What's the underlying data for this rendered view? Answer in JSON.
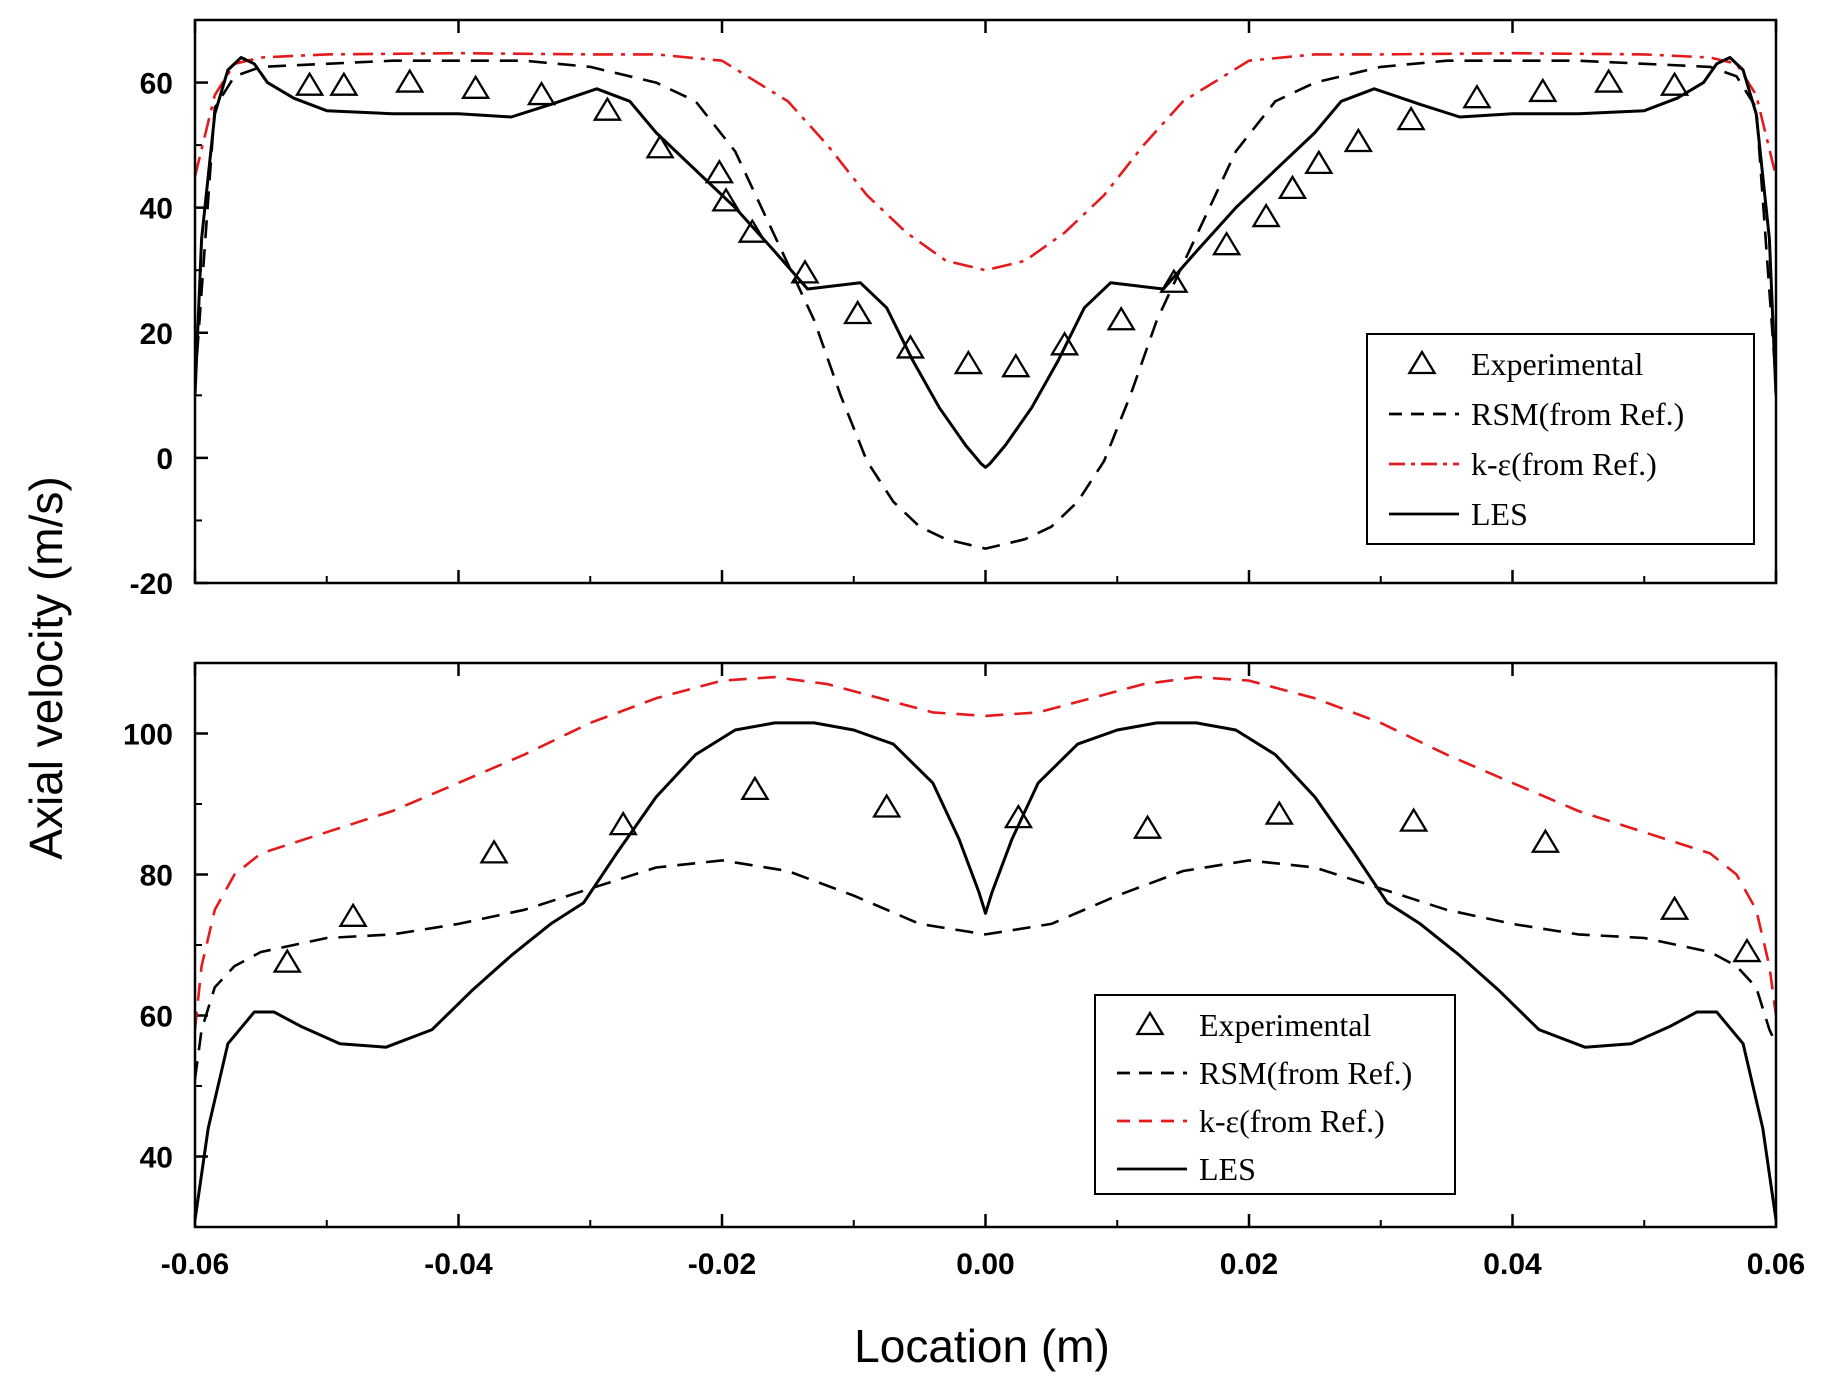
{
  "chart_data": [
    {
      "type": "line",
      "panel": "top",
      "xlabel": "Location (m)",
      "ylabel": "Axial velocity (m/s)",
      "xlim": [
        -0.06,
        0.06
      ],
      "ylim": [
        -20,
        70
      ],
      "xticks": [
        -0.06,
        -0.04,
        -0.02,
        0.0,
        0.02,
        0.04,
        0.06
      ],
      "xtick_labels": [
        "-0.06",
        "-0.04",
        "-0.02",
        "0.00",
        "0.02",
        "0.04",
        "0.06"
      ],
      "yticks": [
        -20,
        0,
        20,
        40,
        60
      ],
      "ytick_labels": [
        "-20",
        "0",
        "20",
        "40",
        "60"
      ],
      "legend_position": "lower-right",
      "series": [
        {
          "name": "Experimental",
          "style": "triangle",
          "color": "#000000",
          "x": [
            -0.0513,
            -0.0487,
            -0.0437,
            -0.0387,
            -0.0337,
            -0.0287,
            -0.0247,
            -0.0202,
            -0.0197,
            -0.0177,
            -0.0137,
            -0.0097,
            -0.0057,
            -0.0013,
            0.0023,
            0.006,
            0.0103,
            0.0143,
            0.0183,
            0.0213,
            0.0233,
            0.0253,
            0.0283,
            0.0323,
            0.0373,
            0.0423,
            0.0473,
            0.0523
          ],
          "y": [
            59.5,
            59.5,
            60,
            59,
            58,
            55.5,
            49.5,
            45.5,
            41,
            36,
            29.5,
            23,
            17.5,
            15,
            14.5,
            18,
            22,
            28,
            34,
            38.5,
            43,
            47,
            50.5,
            54,
            57.5,
            58.5,
            60,
            59.5
          ]
        },
        {
          "name": "RSM(from Ref.)",
          "style": "dashed",
          "color": "#000000",
          "x": [
            -0.06,
            -0.0585,
            -0.057,
            -0.055,
            -0.05,
            -0.045,
            -0.04,
            -0.035,
            -0.03,
            -0.025,
            -0.022,
            -0.019,
            -0.017,
            -0.015,
            -0.013,
            -0.011,
            -0.009,
            -0.007,
            -0.005,
            -0.003,
            -0.001,
            0.0,
            0.001,
            0.003,
            0.005,
            0.007,
            0.009,
            0.011,
            0.013,
            0.015,
            0.017,
            0.019,
            0.022,
            0.025,
            0.03,
            0.035,
            0.04,
            0.045,
            0.05,
            0.055,
            0.057,
            0.0585,
            0.06
          ],
          "y": [
            12,
            56,
            61,
            62.5,
            63,
            63.5,
            63.5,
            63.5,
            62.5,
            60,
            57,
            49,
            40,
            31,
            22,
            10,
            -0.5,
            -7,
            -11,
            -13,
            -14,
            -14.5,
            -14,
            -13,
            -11,
            -7,
            -0.5,
            10,
            22,
            31,
            40,
            49,
            57,
            60,
            62.5,
            63.5,
            63.5,
            63.5,
            63,
            62.5,
            61,
            56,
            12
          ]
        },
        {
          "name": "k-ε(from Ref.)",
          "style": "dash-dot",
          "color": "#e41a1c",
          "x": [
            -0.06,
            -0.0585,
            -0.057,
            -0.055,
            -0.05,
            -0.04,
            -0.03,
            -0.025,
            -0.02,
            -0.015,
            -0.012,
            -0.009,
            -0.006,
            -0.003,
            0.0,
            0.003,
            0.006,
            0.009,
            0.012,
            0.015,
            0.02,
            0.025,
            0.03,
            0.04,
            0.05,
            0.055,
            0.057,
            0.0585,
            0.06
          ],
          "y": [
            45,
            58,
            63,
            64,
            64.5,
            64.7,
            64.5,
            64.5,
            63.5,
            57,
            50,
            42,
            36,
            31.5,
            30,
            31.5,
            36,
            42,
            50,
            57,
            63.5,
            64.5,
            64.5,
            64.7,
            64.5,
            64,
            63,
            58,
            45
          ]
        },
        {
          "name": "LES",
          "style": "solid",
          "color": "#000000",
          "x": [
            -0.06,
            -0.0595,
            -0.0585,
            -0.0575,
            -0.0565,
            -0.0555,
            -0.0545,
            -0.0525,
            -0.05,
            -0.045,
            -0.04,
            -0.036,
            -0.033,
            -0.0295,
            -0.027,
            -0.025,
            -0.022,
            -0.019,
            -0.016,
            -0.0135,
            -0.0115,
            -0.0095,
            -0.0075,
            -0.0055,
            -0.0035,
            -0.0015,
            -0.0003,
            0.0,
            0.0003,
            0.0015,
            0.0035,
            0.0055,
            0.0075,
            0.0095,
            0.0115,
            0.0135,
            0.016,
            0.019,
            0.022,
            0.025,
            0.027,
            0.0295,
            0.033,
            0.036,
            0.04,
            0.045,
            0.05,
            0.0525,
            0.0545,
            0.0555,
            0.0565,
            0.0575,
            0.0585,
            0.0595,
            0.06
          ],
          "y": [
            10,
            35,
            55,
            62,
            64,
            63,
            60,
            57.5,
            55.5,
            55,
            55,
            54.5,
            56.5,
            59,
            57,
            52,
            46,
            40,
            33,
            27,
            27.5,
            28,
            24,
            15.5,
            8,
            2,
            -1,
            -1.5,
            -1,
            2,
            8,
            15.5,
            24,
            28,
            27.5,
            27,
            33,
            40,
            46,
            52,
            57,
            59,
            56.5,
            54.5,
            55,
            55,
            55.5,
            57.5,
            60,
            63,
            64,
            62,
            55,
            35,
            10
          ]
        }
      ]
    },
    {
      "type": "line",
      "panel": "bottom",
      "xlabel": "Location (m)",
      "ylabel": "Axial velocity (m/s)",
      "xlim": [
        -0.06,
        0.06
      ],
      "ylim": [
        30,
        110
      ],
      "xticks": [
        -0.06,
        -0.04,
        -0.02,
        0.0,
        0.02,
        0.04,
        0.06
      ],
      "xtick_labels": [
        "-0.06",
        "-0.04",
        "-0.02",
        "0.00",
        "0.02",
        "0.04",
        "0.06"
      ],
      "yticks": [
        40,
        60,
        80,
        100
      ],
      "ytick_labels": [
        "40",
        "60",
        "80",
        "100"
      ],
      "legend_position": "lower-right",
      "series": [
        {
          "name": "Experimental",
          "style": "triangle",
          "color": "#000000",
          "x": [
            -0.053,
            -0.048,
            -0.0373,
            -0.0275,
            -0.0175,
            -0.0075,
            0.0025,
            0.0123,
            0.0223,
            0.0325,
            0.0425,
            0.0523,
            0.0578
          ],
          "y": [
            67.5,
            74,
            83,
            87,
            92,
            89.5,
            88,
            86.5,
            88.5,
            87.5,
            84.5,
            75,
            69
          ]
        },
        {
          "name": "RSM(from Ref.)",
          "style": "dashed",
          "color": "#000000",
          "x": [
            -0.06,
            -0.0595,
            -0.0585,
            -0.057,
            -0.055,
            -0.05,
            -0.045,
            -0.04,
            -0.035,
            -0.03,
            -0.025,
            -0.02,
            -0.015,
            -0.01,
            -0.005,
            0.0,
            0.005,
            0.01,
            0.015,
            0.02,
            0.025,
            0.03,
            0.035,
            0.04,
            0.045,
            0.05,
            0.055,
            0.057,
            0.0585,
            0.0595,
            0.06
          ],
          "y": [
            51,
            58,
            64,
            67,
            69,
            71,
            71.5,
            73,
            75,
            78,
            81,
            82,
            80.5,
            77,
            73,
            71.5,
            73,
            77,
            80.5,
            82,
            81,
            78,
            75,
            73,
            71.5,
            71,
            69,
            67,
            64,
            58,
            56
          ]
        },
        {
          "name": "k-ε(from Ref.)",
          "style": "dashed",
          "color": "#e41a1c",
          "x": [
            -0.06,
            -0.0595,
            -0.0585,
            -0.057,
            -0.055,
            -0.05,
            -0.045,
            -0.04,
            -0.035,
            -0.03,
            -0.025,
            -0.02,
            -0.016,
            -0.012,
            -0.008,
            -0.004,
            0.0,
            0.004,
            0.008,
            0.012,
            0.016,
            0.02,
            0.025,
            0.03,
            0.035,
            0.04,
            0.045,
            0.05,
            0.055,
            0.057,
            0.0585,
            0.0595,
            0.06
          ],
          "y": [
            58,
            67,
            75,
            80,
            83,
            86,
            89,
            93,
            97,
            101.5,
            105,
            107.5,
            108,
            107,
            105,
            103,
            102.5,
            103,
            105,
            107,
            108,
            107.5,
            105,
            101.5,
            97,
            93,
            89,
            86,
            83,
            80,
            75,
            67,
            60
          ]
        },
        {
          "name": "LES",
          "style": "solid",
          "color": "#000000",
          "x": [
            -0.06,
            -0.059,
            -0.0575,
            -0.0555,
            -0.054,
            -0.052,
            -0.049,
            -0.0455,
            -0.042,
            -0.039,
            -0.036,
            -0.033,
            -0.0305,
            -0.028,
            -0.025,
            -0.022,
            -0.019,
            -0.016,
            -0.013,
            -0.01,
            -0.007,
            -0.004,
            -0.002,
            -0.0005,
            0.0,
            0.0005,
            0.002,
            0.004,
            0.007,
            0.01,
            0.013,
            0.016,
            0.019,
            0.022,
            0.025,
            0.028,
            0.0305,
            0.033,
            0.036,
            0.039,
            0.042,
            0.0455,
            0.049,
            0.052,
            0.054,
            0.0555,
            0.0575,
            0.059,
            0.06
          ],
          "y": [
            31,
            44,
            56,
            60.5,
            60.5,
            58.5,
            56,
            55.5,
            58,
            63.5,
            68.5,
            73,
            76,
            83,
            91,
            97,
            100.5,
            101.5,
            101.5,
            100.5,
            98.5,
            93,
            85,
            77.5,
            74.5,
            77.5,
            85,
            93,
            98.5,
            100.5,
            101.5,
            101.5,
            100.5,
            97,
            91,
            83,
            76,
            73,
            68.5,
            63.5,
            58,
            55.5,
            56,
            58.5,
            60.5,
            60.5,
            56,
            44,
            31
          ]
        }
      ]
    }
  ]
}
